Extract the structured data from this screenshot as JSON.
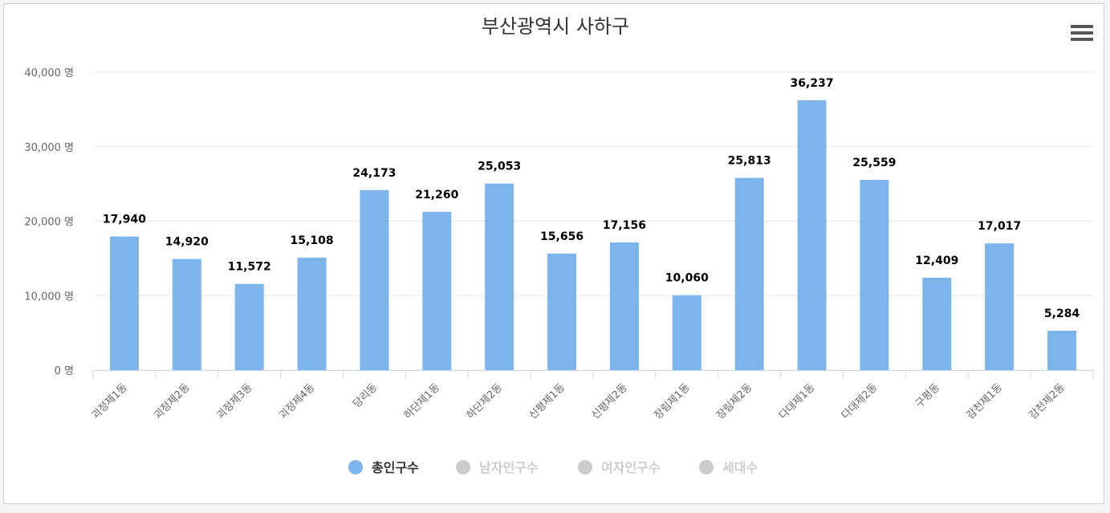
{
  "chart_data": {
    "type": "bar",
    "title": "부산광역시 사하구",
    "categories": [
      "괴정제1동",
      "괴정제2동",
      "괴정제3동",
      "괴정제4동",
      "당리동",
      "하단제1동",
      "하단제2동",
      "신평제1동",
      "신평제2동",
      "장림제1동",
      "장림제2동",
      "다대제1동",
      "다대제2동",
      "구평동",
      "감천제1동",
      "감천제2동"
    ],
    "series": [
      {
        "name": "총인구수",
        "values": [
          17940,
          14920,
          11572,
          15108,
          24173,
          21260,
          25053,
          15656,
          17156,
          10060,
          25813,
          36237,
          25559,
          12409,
          17017,
          5284
        ],
        "value_labels": [
          "17,940",
          "14,920",
          "11,572",
          "15,108",
          "24,173",
          "21,260",
          "25,053",
          "15,656",
          "17,156",
          "10,060",
          "25,813",
          "36,237",
          "25,559",
          "12,409",
          "17,017",
          "5,284"
        ],
        "color": "#7cb5ec",
        "visible": true
      },
      {
        "name": "남자인구수",
        "visible": false
      },
      {
        "name": "여자인구수",
        "visible": false
      },
      {
        "name": "세대수",
        "visible": false
      }
    ],
    "yticks": [
      0,
      10000,
      20000,
      30000,
      40000
    ],
    "ytick_labels": [
      "0 명",
      "10,000 명",
      "20,000 명",
      "30,000 명",
      "40,000 명"
    ],
    "ylim": [
      0,
      40000
    ],
    "grid": true,
    "legend": "bottom-center"
  },
  "colors": {
    "bar": "#7cb5ec",
    "legend_active": "#7cb5ec",
    "legend_inactive": "#cccccc",
    "grid": "#e6e6e6",
    "axis": "#ccd6eb"
  },
  "menu_icon": "hamburger-menu-icon"
}
